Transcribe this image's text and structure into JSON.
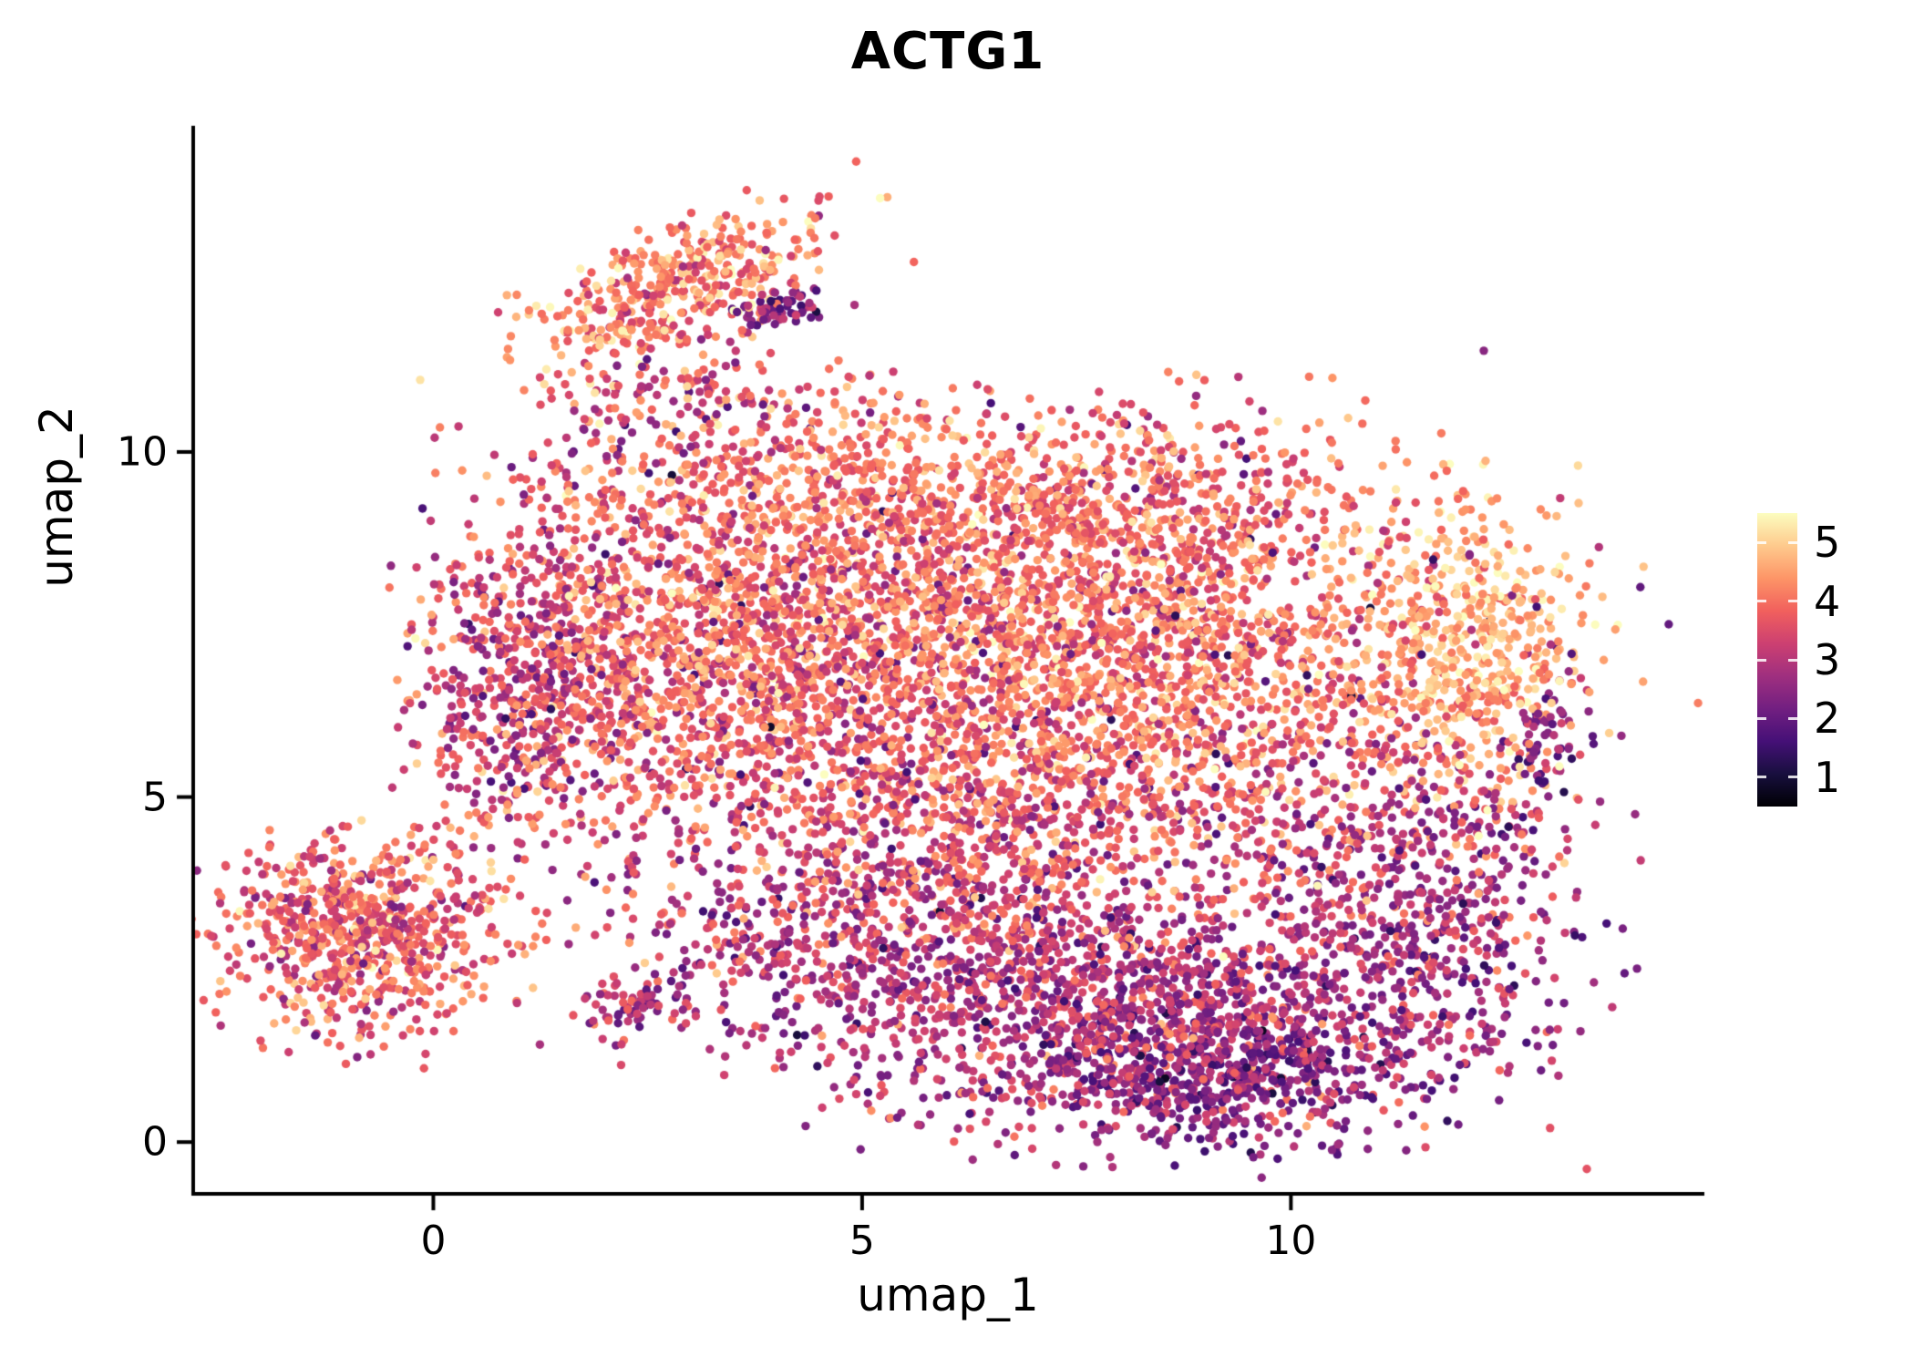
{
  "figure": {
    "background": "#ffffff",
    "text_color": "#000000"
  },
  "chart_data": {
    "type": "scatter",
    "title": "ACTG1",
    "xlabel": "umap_1",
    "ylabel": "umap_2",
    "x_ticks": [
      "0",
      "5",
      "10"
    ],
    "x_tick_values": [
      0,
      5,
      10
    ],
    "y_ticks": [
      "0",
      "5",
      "10"
    ],
    "y_tick_values": [
      0,
      5,
      10
    ],
    "x_range": [
      -2.8,
      14.8
    ],
    "y_range": [
      -0.75,
      14.7
    ],
    "grid": false,
    "legend_position": "right",
    "point_radius_px": 4.7,
    "seed": 42,
    "colormap": {
      "name": "magma",
      "stops": [
        "#000004",
        "#180f3e",
        "#451077",
        "#721f81",
        "#9f2f7f",
        "#cd4071",
        "#f1605d",
        "#fd9567",
        "#feca8d",
        "#fcfdbf"
      ]
    },
    "colorbar": {
      "min": 1,
      "max": 5,
      "labels": [
        "5",
        "4",
        "3",
        "2",
        "1"
      ]
    },
    "clusters": [
      {
        "name": "top-arm",
        "cx": 2.85,
        "cy": 12.35,
        "sx": 1.0,
        "sy": 0.4,
        "rot_deg": 28,
        "n": 430,
        "expr_mean": 3.95,
        "expr_sd": 0.5
      },
      {
        "name": "top-arm-dark-edge",
        "cx": 4.05,
        "cy": 12.1,
        "sx": 0.45,
        "sy": 0.16,
        "rot_deg": 14,
        "n": 60,
        "expr_mean": 2.5,
        "expr_sd": 0.45
      },
      {
        "name": "arm-neck",
        "cx": 2.55,
        "cy": 10.6,
        "sx": 0.75,
        "sy": 0.5,
        "rot_deg": 40,
        "n": 140,
        "expr_mean": 3.4,
        "expr_sd": 0.65
      },
      {
        "name": "upper-band",
        "cx": 6.2,
        "cy": 9.4,
        "sx": 2.5,
        "sy": 0.55,
        "rot_deg": 0,
        "n": 700,
        "expr_mean": 3.8,
        "expr_sd": 0.45
      },
      {
        "name": "upper-sparse",
        "cx": 4.7,
        "cy": 10.6,
        "sx": 0.9,
        "sy": 0.4,
        "rot_deg": 0,
        "n": 60,
        "expr_mean": 3.5,
        "expr_sd": 0.6
      },
      {
        "name": "core-left",
        "cx": 3.6,
        "cy": 7.2,
        "sx": 1.5,
        "sy": 1.35,
        "rot_deg": 0,
        "n": 1600,
        "expr_mean": 3.7,
        "expr_sd": 0.55
      },
      {
        "name": "core-right",
        "cx": 7.8,
        "cy": 7.1,
        "sx": 1.9,
        "sy": 1.45,
        "rot_deg": 0,
        "n": 2200,
        "expr_mean": 3.85,
        "expr_sd": 0.5
      },
      {
        "name": "left-lobe",
        "cx": 1.1,
        "cy": 6.6,
        "sx": 0.65,
        "sy": 1.2,
        "rot_deg": 0,
        "n": 500,
        "expr_mean": 3.2,
        "expr_sd": 0.6
      },
      {
        "name": "left-island",
        "cx": -0.85,
        "cy": 3.0,
        "sx": 0.8,
        "sy": 0.72,
        "rot_deg": 0,
        "n": 760,
        "expr_mean": 3.6,
        "expr_sd": 0.55
      },
      {
        "name": "right-bright",
        "cx": 12.1,
        "cy": 7.2,
        "sx": 0.72,
        "sy": 1.05,
        "rot_deg": 0,
        "n": 520,
        "expr_mean": 4.35,
        "expr_sd": 0.4
      },
      {
        "name": "right-edge-dark",
        "cx": 13.0,
        "cy": 5.9,
        "sx": 0.22,
        "sy": 0.65,
        "rot_deg": 0,
        "n": 70,
        "expr_mean": 2.5,
        "expr_sd": 0.5
      },
      {
        "name": "right-mid",
        "cx": 11.3,
        "cy": 4.3,
        "sx": 1.0,
        "sy": 1.0,
        "rot_deg": 0,
        "n": 350,
        "expr_mean": 3.1,
        "expr_sd": 0.6
      },
      {
        "name": "bottom-lobe",
        "cx": 8.2,
        "cy": 1.8,
        "sx": 1.9,
        "sy": 0.85,
        "rot_deg": 0,
        "n": 1500,
        "expr_mean": 2.95,
        "expr_sd": 0.55
      },
      {
        "name": "bottom-dark-core",
        "cx": 9.2,
        "cy": 0.95,
        "sx": 1.05,
        "sy": 0.45,
        "rot_deg": 0,
        "n": 350,
        "expr_mean": 2.3,
        "expr_sd": 0.4
      },
      {
        "name": "mid-low",
        "cx": 5.6,
        "cy": 3.3,
        "sx": 1.6,
        "sy": 0.8,
        "rot_deg": 0,
        "n": 550,
        "expr_mean": 3.25,
        "expr_sd": 0.6
      },
      {
        "name": "small-clump",
        "cx": 2.3,
        "cy": 1.95,
        "sx": 0.33,
        "sy": 0.24,
        "rot_deg": 0,
        "n": 70,
        "expr_mean": 2.9,
        "expr_sd": 0.5
      },
      {
        "name": "trail",
        "cx": 4.0,
        "cy": 2.7,
        "sx": 0.95,
        "sy": 0.35,
        "rot_deg": -18,
        "n": 120,
        "expr_mean": 2.8,
        "expr_sd": 0.5
      },
      {
        "name": "mid-band",
        "cx": 6.6,
        "cy": 4.7,
        "sx": 2.4,
        "sy": 0.75,
        "rot_deg": 0,
        "n": 500,
        "expr_mean": 3.45,
        "expr_sd": 0.55
      },
      {
        "name": "right-lower-edge",
        "cx": 11.8,
        "cy": 2.7,
        "sx": 0.75,
        "sy": 0.95,
        "rot_deg": 40,
        "n": 220,
        "expr_mean": 2.7,
        "expr_sd": 0.5
      },
      {
        "name": "diffuse-fill",
        "cx": 6.5,
        "cy": 6.2,
        "sx": 3.1,
        "sy": 2.1,
        "rot_deg": 0,
        "n": 300,
        "expr_mean": 3.4,
        "expr_sd": 0.7
      },
      {
        "name": "dark-sprinkle",
        "cx": 6.2,
        "cy": 6.8,
        "sx": 3.0,
        "sy": 1.8,
        "rot_deg": 0,
        "n": 240,
        "expr_mean": 2.5,
        "expr_sd": 0.45
      }
    ]
  }
}
